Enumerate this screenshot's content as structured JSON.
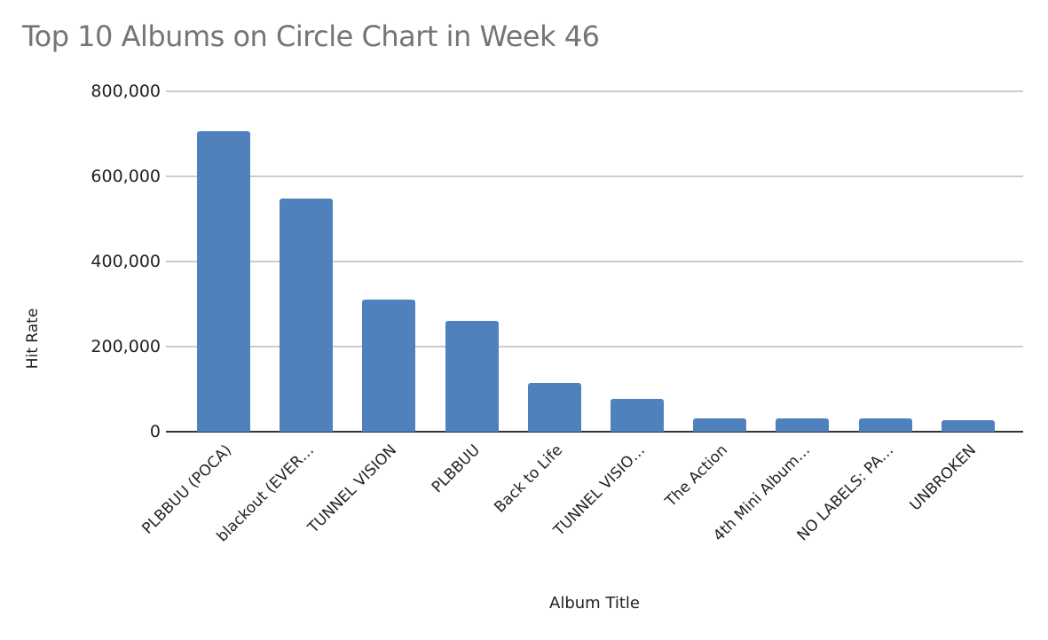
{
  "chart_data": {
    "type": "bar",
    "title": "Top 10 Albums on Circle Chart in Week 46",
    "xlabel": "Album Title",
    "ylabel": "Hit Rate",
    "categories": [
      "PLBBUU (POCA)",
      "blackout (EVER…",
      "TUNNEL VISION",
      "PLBBUU",
      "Back to Life",
      "TUNNEL VISIO…",
      "The Action",
      "4th Mini Album…",
      "NO LABELS: PA…",
      "UNBROKEN"
    ],
    "values": [
      706000,
      548000,
      310000,
      260000,
      115000,
      77000,
      31000,
      31000,
      31000,
      27000
    ],
    "ylim": [
      0,
      800000
    ],
    "yticks": [
      "0",
      "200,000",
      "400,000",
      "600,000",
      "800,000"
    ],
    "grid": true,
    "legend": "none",
    "bar_color": "#4f81bd"
  }
}
